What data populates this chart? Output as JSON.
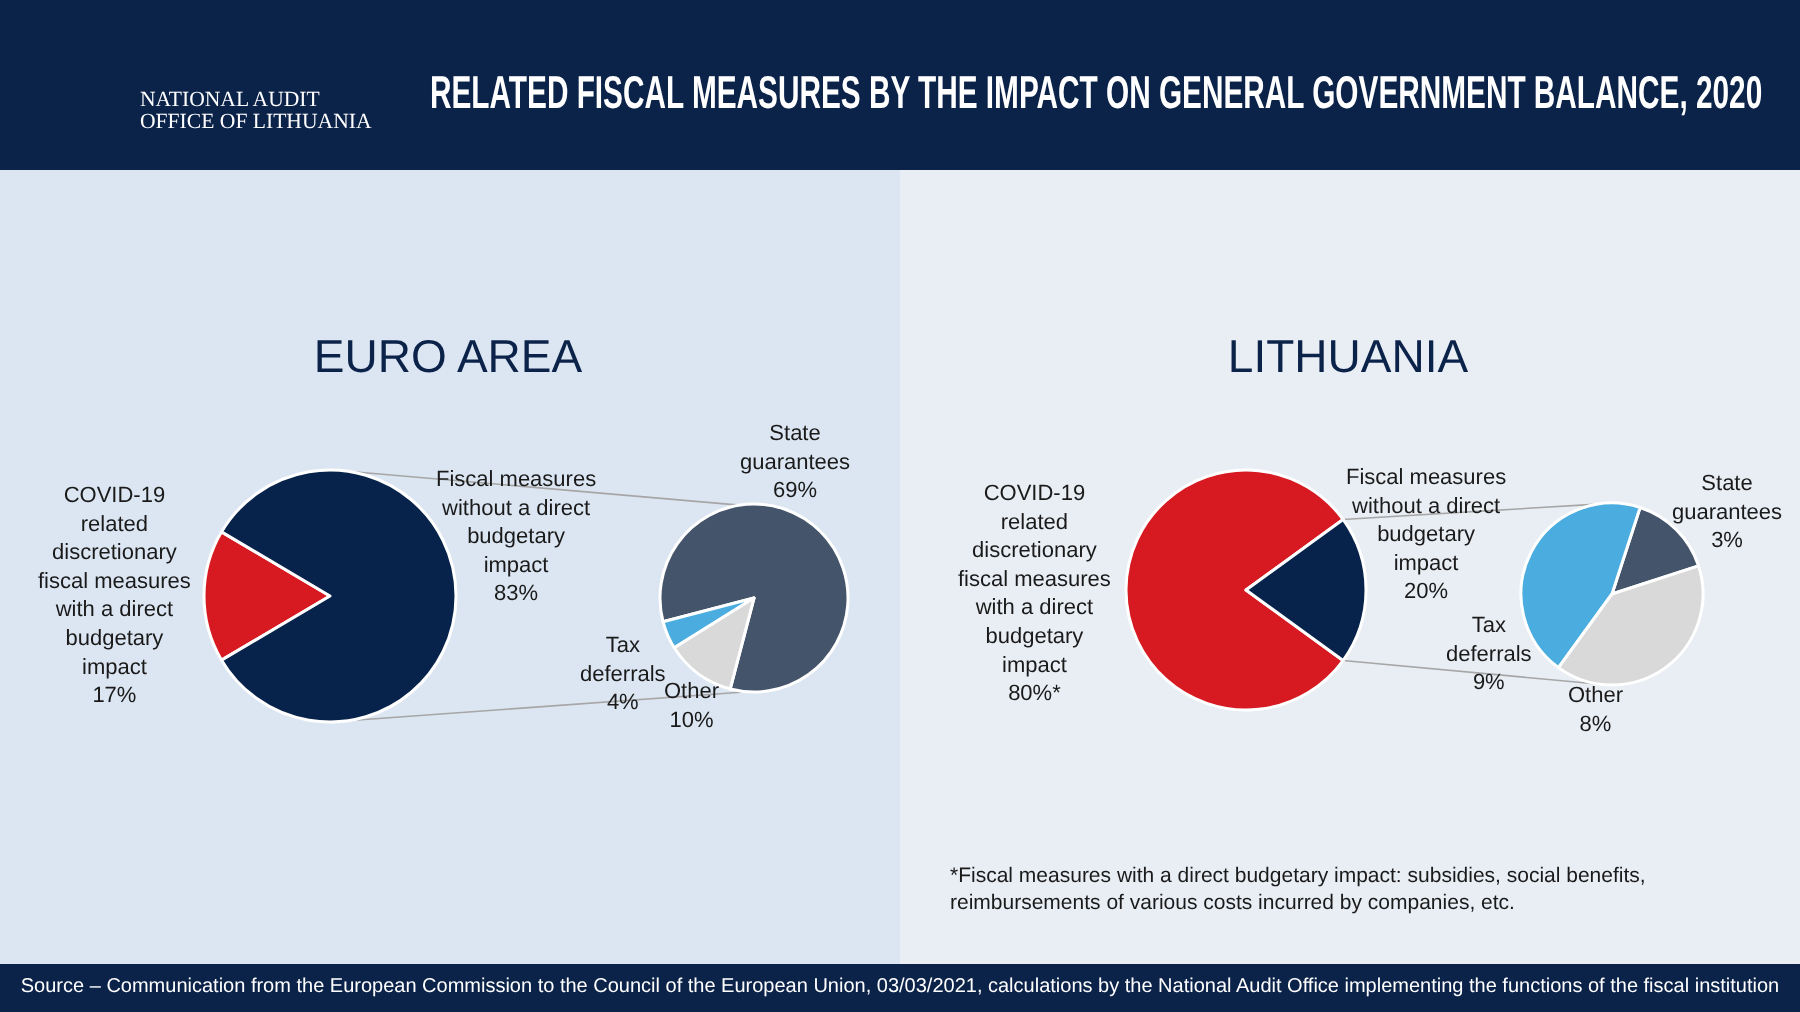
{
  "chart_data": [
    {
      "type": "other",
      "title": "RELATED FISCAL MEASURES BY THE IMPACT ON GENERAL GOVERNMENT BALANCE, 2020",
      "annotations": [
        "NATIONAL AUDIT OFFICE OF LITHUANIA",
        "Source – Communication from the European Commission to the Council of the European Union, 03/03/2021, calculations by the National Audit Office implementing the functions of the fiscal institution"
      ]
    },
    {
      "type": "pie",
      "title": "EURO AREA",
      "categories": [
        "COVID-19 related discretionary fiscal measures with a direct budgetary impact",
        "Fiscal measures without a direct budgetary impact"
      ],
      "values": [
        17,
        83
      ],
      "colors": [
        "#d71a21",
        "#07234b"
      ],
      "value_labels": [
        "17%",
        "83%"
      ]
    },
    {
      "type": "pie",
      "categories": [
        "State guarantees",
        "Tax deferrals",
        "Other"
      ],
      "values": [
        69,
        4,
        10
      ],
      "colors": [
        "#44546a",
        "#4aacdf",
        "#d9d9d9"
      ],
      "value_labels": [
        "69%",
        "4%",
        "10%"
      ]
    },
    {
      "type": "pie",
      "title": "LITHUANIA",
      "categories": [
        "COVID-19 related discretionary fiscal measures with a direct budgetary impact",
        "Fiscal measures without a direct budgetary impact"
      ],
      "values": [
        80,
        20
      ],
      "colors": [
        "#d71a21",
        "#07234b"
      ],
      "value_labels": [
        "80%*",
        "20%"
      ],
      "annotations": [
        "*Fiscal measures with a direct budgetary impact: subsidies, social benefits, reimbursements of various costs incurred by companies, etc."
      ]
    },
    {
      "type": "pie",
      "categories": [
        "State guarantees",
        "Tax deferrals",
        "Other"
      ],
      "values": [
        3,
        9,
        8
      ],
      "colors": [
        "#44546a",
        "#4aacdf",
        "#d9d9d9"
      ],
      "value_labels": [
        "3%",
        "9%",
        "8%"
      ]
    }
  ]
}
